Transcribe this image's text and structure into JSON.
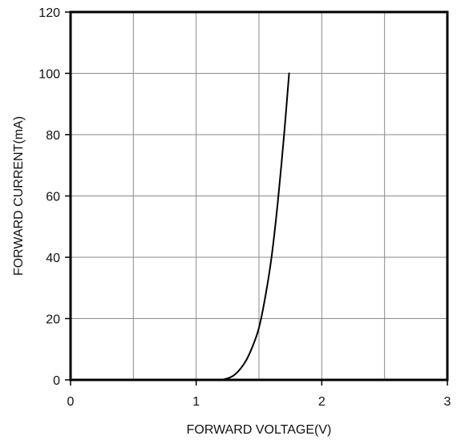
{
  "chart_data": {
    "type": "line",
    "title": "",
    "xlabel": "FORWARD VOLTAGE(V)",
    "ylabel": "FORWARD CURRENT(mA)",
    "xlim": [
      0,
      3
    ],
    "ylim": [
      0,
      120
    ],
    "x_ticks": [
      0,
      1,
      2,
      3
    ],
    "x_tick_labels": [
      "0",
      "1",
      "2",
      "3"
    ],
    "y_ticks": [
      0,
      20,
      40,
      60,
      80,
      100,
      120
    ],
    "y_tick_labels": [
      "0",
      "20",
      "40",
      "60",
      "80",
      "100",
      "120"
    ],
    "x_gridlines": [
      0.5,
      1,
      1.5,
      2,
      2.5
    ],
    "y_gridlines": [
      20,
      40,
      60,
      80,
      100
    ],
    "grid": true,
    "legend": "none",
    "colors": {
      "line": "#000000",
      "grid": "#8a8a8a",
      "frame": "#000000"
    },
    "series": [
      {
        "x": [
          1.2,
          1.25,
          1.3,
          1.35,
          1.4,
          1.45,
          1.5,
          1.55,
          1.6,
          1.65,
          1.7,
          1.74
        ],
        "y": [
          0,
          0.5,
          1.5,
          3.5,
          6.5,
          11,
          17,
          27,
          40,
          58,
          80,
          100
        ]
      }
    ]
  }
}
